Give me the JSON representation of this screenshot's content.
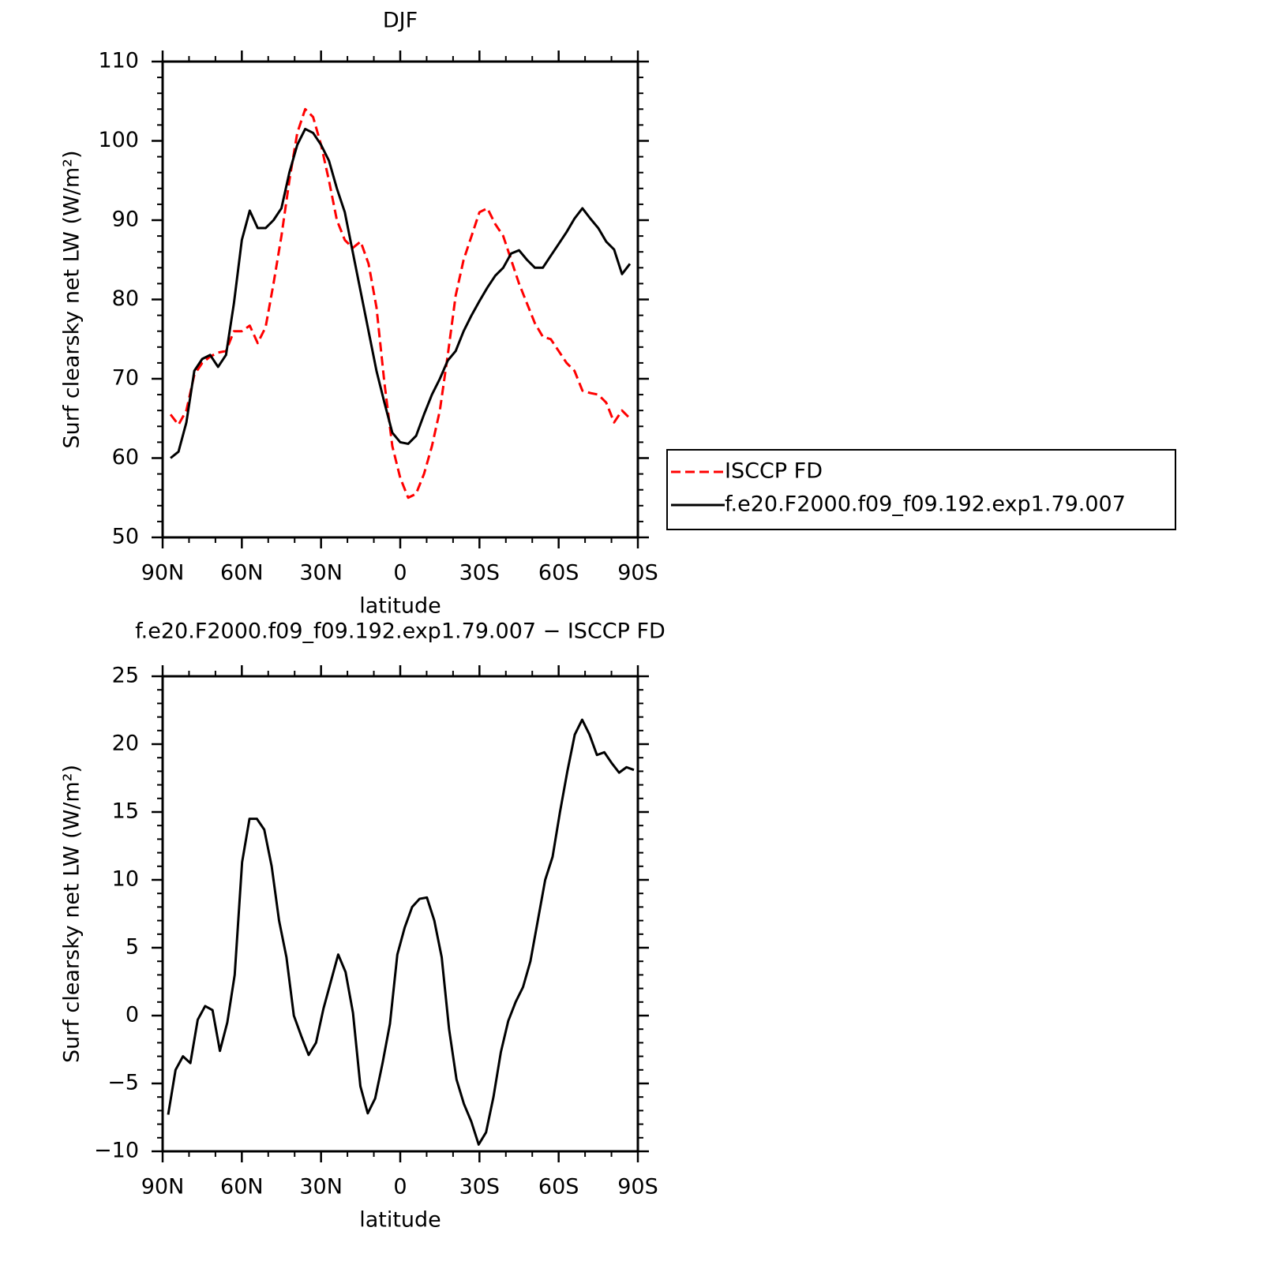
{
  "chart_data": [
    {
      "type": "line",
      "title": "DJF",
      "xlabel": "latitude",
      "ylabel": "Surf clearsky net LW (W/m²)",
      "legend": "right",
      "xlim": [
        90,
        -90
      ],
      "xticks": [
        {
          "value": 90,
          "label": "90N"
        },
        {
          "value": 60,
          "label": "60N"
        },
        {
          "value": 30,
          "label": "30N"
        },
        0,
        {
          "value": -30,
          "label": "30S"
        },
        {
          "value": -60,
          "label": "60S"
        },
        {
          "value": -90,
          "label": "90S"
        }
      ],
      "ylim": [
        50,
        110
      ],
      "yticks": [
        50,
        60,
        70,
        80,
        90,
        100,
        110
      ],
      "x": [
        87,
        84,
        81,
        78,
        75,
        72,
        69,
        66,
        63,
        60,
        57,
        54,
        51,
        48,
        45,
        42,
        39,
        36,
        33,
        30,
        27,
        24,
        21,
        18,
        15,
        12,
        9,
        6,
        3,
        0,
        -3,
        -6,
        -9,
        -12,
        -15,
        -18,
        -21,
        -24,
        -27,
        -30,
        -33,
        -36,
        -39,
        -42,
        -45,
        -48,
        -51,
        -54,
        -57,
        -60,
        -63,
        -66,
        -69,
        -72,
        -75,
        -78,
        -81,
        -84,
        -87
      ],
      "series": [
        {
          "name": "ISCCP FD",
          "color": "#ff0000",
          "dashed": true,
          "values": [
            65.5,
            64.2,
            66,
            70.5,
            72,
            72.8,
            73.3,
            73.5,
            76,
            76,
            76.7,
            74.5,
            76.5,
            82,
            88,
            95,
            101,
            104,
            103,
            99.5,
            95,
            90,
            87.5,
            86.5,
            87.3,
            84.5,
            79,
            69.5,
            61.5,
            57.5,
            55,
            55.5,
            58,
            61.5,
            66,
            73,
            80.5,
            85,
            88,
            91,
            91.5,
            89.5,
            88,
            85,
            82,
            79.5,
            77,
            75.3,
            75,
            73.5,
            72,
            71,
            68.5,
            68.2,
            68,
            67,
            64.5,
            66,
            65
          ]
        },
        {
          "name": "f.e20.F2000.f09_f09.192.exp1.79.007",
          "color": "#000000",
          "dashed": false,
          "values": [
            60,
            60.8,
            64.5,
            71,
            72.5,
            73,
            71.5,
            73,
            79.5,
            87.5,
            91.2,
            89,
            89,
            90,
            91.5,
            96,
            99.5,
            101.5,
            101,
            99.5,
            97.5,
            94,
            91,
            86,
            81,
            76,
            71,
            67,
            63.2,
            62,
            61.8,
            62.8,
            65.5,
            68,
            70,
            72.3,
            73.5,
            76,
            78,
            79.8,
            81.5,
            83,
            84,
            85.8,
            86.2,
            85,
            84,
            84,
            85.5,
            87,
            88.5,
            90.2,
            91.5,
            90.2,
            89,
            87.3,
            86.3,
            83.2,
            84.5
          ]
        }
      ]
    },
    {
      "type": "line",
      "title": "f.e20.F2000.f09_f09.192.exp1.79.007 − ISCCP FD",
      "xlabel": "latitude",
      "ylabel": "Surf clearsky net LW (W/m²)",
      "xlim": [
        90,
        -90
      ],
      "xticks": [
        {
          "value": 90,
          "label": "90N"
        },
        {
          "value": 60,
          "label": "60N"
        },
        {
          "value": 30,
          "label": "30N"
        },
        0,
        {
          "value": -30,
          "label": "30S"
        },
        {
          "value": -60,
          "label": "60S"
        },
        {
          "value": -90,
          "label": "90S"
        }
      ],
      "ylim": [
        -10,
        25
      ],
      "yticks": [
        {
          "value": -10,
          "label": "−10"
        },
        {
          "value": -5,
          "label": "−5"
        },
        0,
        5,
        10,
        15,
        20,
        25
      ],
      "x": [
        87.9,
        85.1,
        82.3,
        79.5,
        76.7,
        73.9,
        71.1,
        68.3,
        65.5,
        62.7,
        59.9,
        57.1,
        54.3,
        51.5,
        48.7,
        45.9,
        43.1,
        40.3,
        37.5,
        34.7,
        31.9,
        29.1,
        26.3,
        23.5,
        20.7,
        17.9,
        15.1,
        12.3,
        9.5,
        6.7,
        3.9,
        1.1,
        -1.7,
        -4.5,
        -7.3,
        -10.1,
        -12.9,
        -15.7,
        -18.5,
        -21.3,
        -24.1,
        -26.9,
        -29.7,
        -32.5,
        -35.3,
        -38.1,
        -40.9,
        -43.7,
        -46.5,
        -49.3,
        -52.1,
        -54.9,
        -57.7,
        -60.5,
        -63.3,
        -66.1,
        -68.9,
        -71.7,
        -74.5,
        -77.3,
        -80.1,
        -82.9,
        -85.7,
        -88.5
      ],
      "series": [
        {
          "color": "#000000",
          "dashed": false,
          "values": [
            -7.3,
            -4,
            -3,
            -3.5,
            -0.3,
            0.7,
            0.4,
            -2.6,
            -0.5,
            3,
            11.3,
            14.5,
            14.5,
            13.7,
            11,
            7,
            4.3,
            0,
            -1.5,
            -2.9,
            -2,
            0.5,
            2.5,
            4.5,
            3.2,
            0.2,
            -5.2,
            -7.2,
            -6.1,
            -3.5,
            -0.6,
            4.5,
            6.5,
            8,
            8.6,
            8.7,
            7,
            4.3,
            -1,
            -4.7,
            -6.5,
            -7.8,
            -9.5,
            -8.6,
            -6,
            -2.7,
            -0.4,
            1,
            2.1,
            4,
            7,
            10,
            11.7,
            15,
            18,
            20.7,
            21.8,
            20.7,
            19.2,
            19.4,
            18.6,
            17.9,
            18.3,
            18.1
          ]
        }
      ]
    }
  ]
}
